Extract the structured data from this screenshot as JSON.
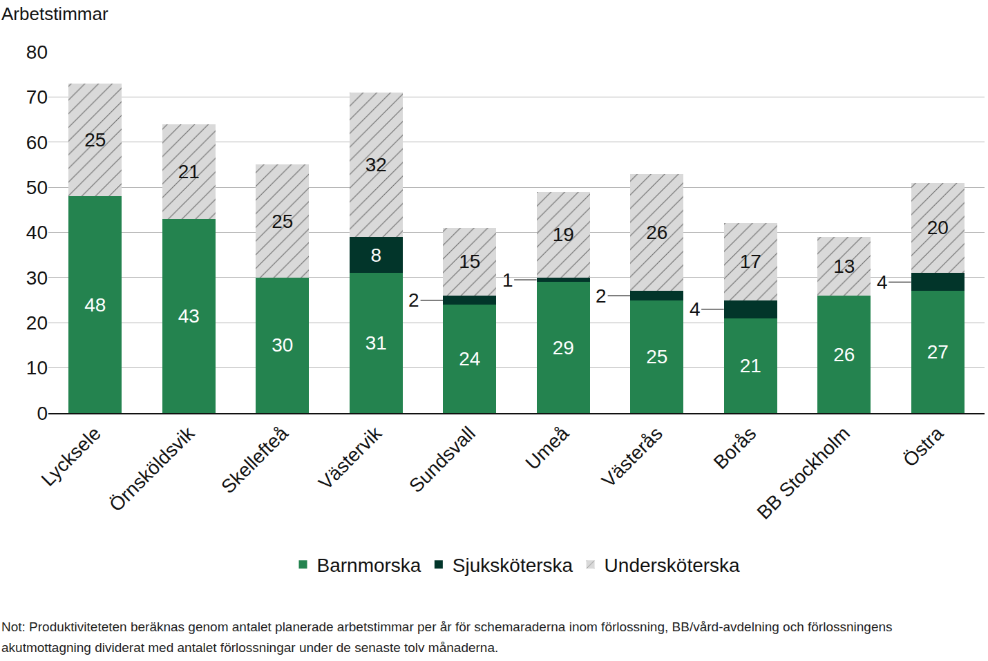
{
  "chart_data": {
    "type": "bar",
    "stacked": true,
    "data_labels": true,
    "grid": true,
    "legend": "bottom",
    "y_label": "Arbetstimmar",
    "categories": [
      "Lycksele",
      "Örnsköldsvik",
      "Skellefteå",
      "Västervik",
      "Sundsvall",
      "Umeå",
      "Västerås",
      "Borås",
      "BB Stockholm",
      "Östra"
    ],
    "series": [
      {
        "name": "Barnmorska",
        "color": "#24834f",
        "values": [
          48,
          43,
          30,
          31,
          24,
          29,
          25,
          21,
          26,
          27
        ]
      },
      {
        "name": "Sjuksköterska",
        "color": "#02352a",
        "values": [
          null,
          null,
          null,
          8,
          2,
          1,
          2,
          4,
          null,
          4
        ]
      },
      {
        "name": "Undersköterska",
        "color": "#d9d9d9",
        "values": [
          25,
          21,
          25,
          32,
          15,
          19,
          26,
          17,
          13,
          20
        ]
      }
    ],
    "ylim": [
      0,
      80
    ],
    "yticks": [
      0,
      10,
      20,
      30,
      40,
      50,
      60,
      70,
      80
    ],
    "note": "Not: Produktiviteteten beräknas genom antalet planerade arbetstimmar per år för schemaraderna inom förlossning, BB/vård-avdelning och förlossningens akutmottagning dividerat med antalet förlossningar under de senaste tolv månaderna."
  }
}
